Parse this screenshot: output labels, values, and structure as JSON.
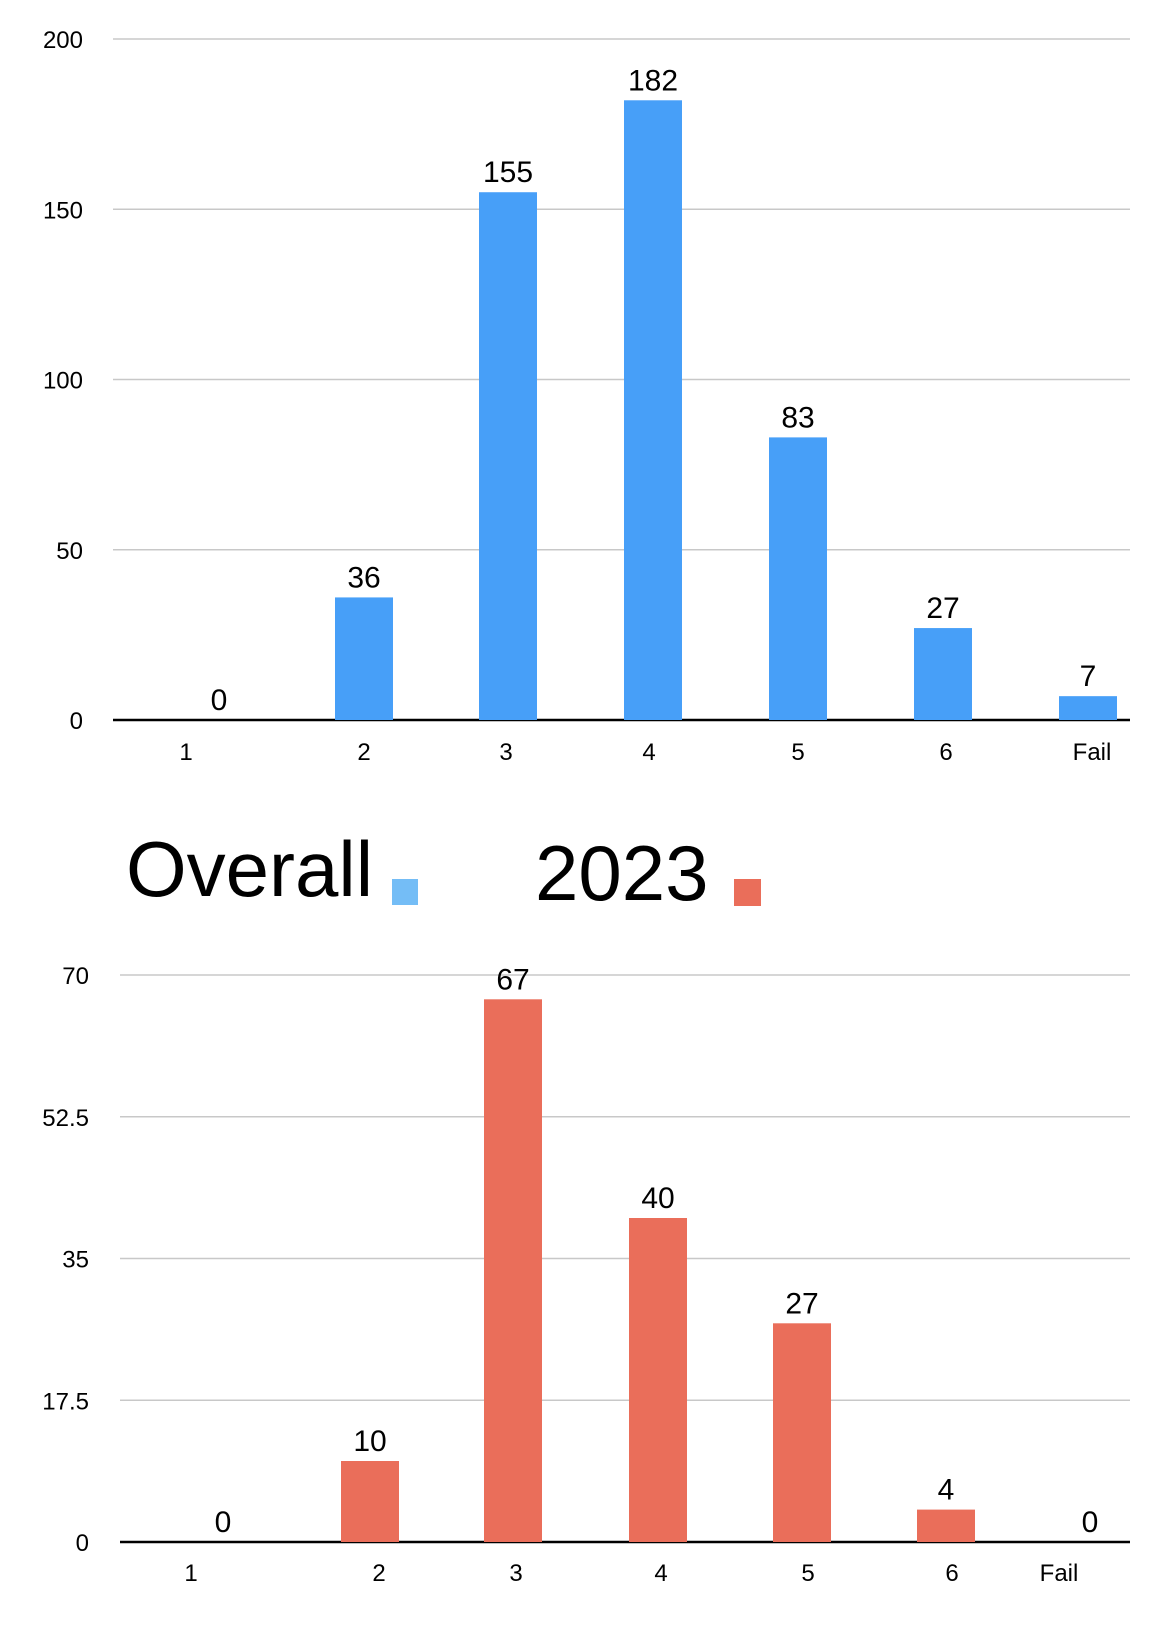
{
  "chart_data": [
    {
      "type": "bar",
      "series": [
        {
          "name": "Overall",
          "values": [
            0,
            36,
            155,
            182,
            83,
            27,
            7
          ]
        }
      ],
      "categories": [
        "1",
        "2",
        "3",
        "4",
        "5",
        "6",
        "Fail"
      ],
      "y_ticks": [
        "0",
        "50",
        "100",
        "150",
        "200"
      ],
      "ylim": [
        0,
        200
      ],
      "grid": true,
      "data_labels": true,
      "color": "#479ff8"
    },
    {
      "type": "bar",
      "series": [
        {
          "name": "2023",
          "values": [
            0,
            10,
            67,
            40,
            27,
            4,
            0
          ]
        }
      ],
      "categories": [
        "1",
        "2",
        "3",
        "4",
        "5",
        "6",
        "Fail"
      ],
      "y_ticks": [
        "0",
        "17.5",
        "35",
        "52.5",
        "70"
      ],
      "ylim": [
        0,
        70
      ],
      "grid": true,
      "data_labels": true,
      "color": "#ea6e5a"
    }
  ],
  "legend": {
    "placement": "between-charts",
    "items": [
      {
        "label": "Overall",
        "color": "#74bdf6"
      },
      {
        "label": "2023",
        "color": "#ea6e5a"
      }
    ]
  }
}
